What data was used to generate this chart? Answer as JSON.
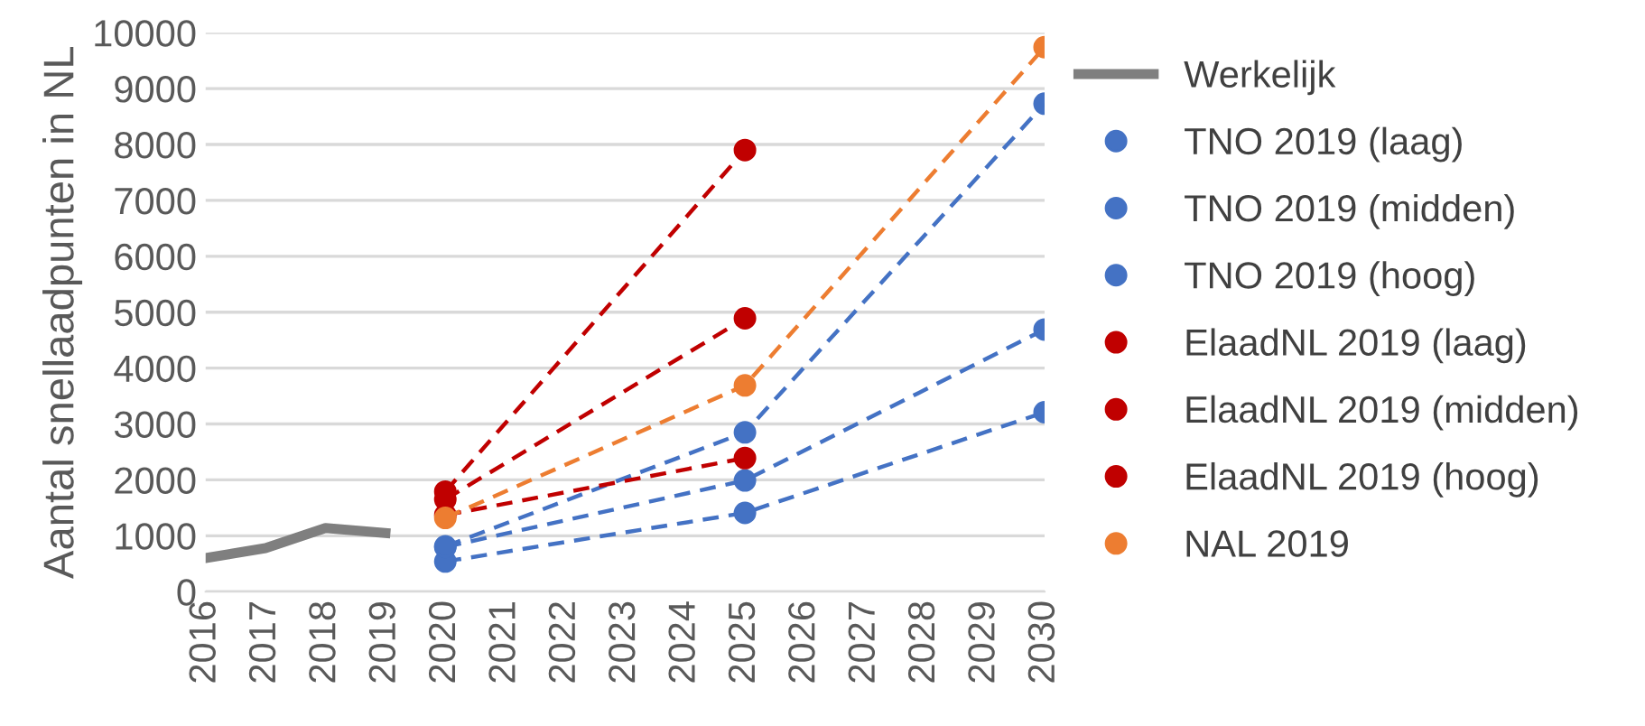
{
  "chart_data": {
    "type": "line",
    "ylabel": "Aantal snellaadpunten in NL",
    "xlim": [
      2016,
      2030
    ],
    "xticks": [
      2016,
      2017,
      2018,
      2019,
      2020,
      2021,
      2022,
      2023,
      2024,
      2025,
      2026,
      2027,
      2028,
      2029,
      2030
    ],
    "ylim": [
      0,
      10000
    ],
    "yticks": [
      0,
      1000,
      2000,
      3000,
      4000,
      5000,
      6000,
      7000,
      8000,
      9000,
      10000
    ],
    "grid": "y",
    "legend": "right",
    "series": [
      {
        "name": "Werkelijk",
        "color": "#7f7f7f",
        "x": [
          2016,
          2017,
          2018,
          2019
        ],
        "values": [
          600,
          780,
          1140,
          1050
        ],
        "marker": "none",
        "line_style": "solid"
      },
      {
        "name": "TNO 2019 (laag)",
        "color": "#4472c4",
        "x": [
          2020,
          2025,
          2030
        ],
        "values": [
          540,
          1410,
          3210
        ],
        "marker": "circle",
        "line_style": "dashed"
      },
      {
        "name": "TNO 2019 (midden)",
        "color": "#4472c4",
        "x": [
          2020,
          2025,
          2030
        ],
        "values": [
          800,
          1990,
          4690
        ],
        "marker": "circle",
        "line_style": "dashed"
      },
      {
        "name": "TNO 2019 (hoog)",
        "color": "#4472c4",
        "x": [
          2020,
          2025,
          2030
        ],
        "values": [
          810,
          2850,
          8730
        ],
        "marker": "circle",
        "line_style": "dashed"
      },
      {
        "name": "ElaadNL 2019 (laag)",
        "color": "#c00000",
        "x": [
          2020,
          2025
        ],
        "values": [
          1370,
          2390
        ],
        "marker": "circle",
        "line_style": "dashed"
      },
      {
        "name": "ElaadNL 2019 (midden)",
        "color": "#c00000",
        "x": [
          2020,
          2025
        ],
        "values": [
          1650,
          4890
        ],
        "marker": "circle",
        "line_style": "dashed"
      },
      {
        "name": "ElaadNL 2019 (hoog)",
        "color": "#c00000",
        "x": [
          2020,
          2025
        ],
        "values": [
          1790,
          7900
        ],
        "marker": "circle",
        "line_style": "dashed"
      },
      {
        "name": "NAL 2019",
        "color": "#ed7d31",
        "x": [
          2020,
          2025,
          2030
        ],
        "values": [
          1320,
          3690,
          9740
        ],
        "marker": "circle",
        "line_style": "dashed"
      }
    ]
  }
}
